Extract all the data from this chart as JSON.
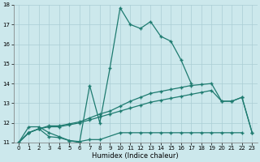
{
  "xlabel": "Humidex (Indice chaleur)",
  "bg_color": "#cce8ec",
  "line_color": "#1e7b70",
  "grid_color": "#aacdd4",
  "xlim": [
    -0.5,
    23.5
  ],
  "ylim": [
    11,
    18
  ],
  "xticks": [
    0,
    1,
    2,
    3,
    4,
    5,
    6,
    7,
    8,
    9,
    10,
    11,
    12,
    13,
    14,
    15,
    16,
    17,
    18,
    19,
    20,
    21,
    22,
    23
  ],
  "yticks": [
    11,
    12,
    13,
    14,
    15,
    16,
    17,
    18
  ],
  "s1x": [
    0,
    1,
    2,
    3,
    4,
    5,
    6,
    7,
    8,
    9,
    10,
    11,
    12,
    13,
    14,
    15,
    16,
    17
  ],
  "s1y": [
    11.0,
    11.8,
    11.8,
    11.5,
    11.3,
    11.1,
    11.0,
    13.9,
    12.0,
    14.8,
    17.85,
    17.0,
    16.8,
    17.15,
    16.4,
    16.15,
    15.2,
    14.0
  ],
  "s2x": [
    0,
    1,
    2,
    3,
    4,
    5,
    6,
    7,
    8,
    10,
    11,
    12,
    13,
    14,
    15,
    16,
    17,
    18,
    19,
    20,
    21,
    22
  ],
  "s2y": [
    11.0,
    11.5,
    11.7,
    11.3,
    11.25,
    11.1,
    11.05,
    11.15,
    11.15,
    11.5,
    11.5,
    11.5,
    11.5,
    11.5,
    11.5,
    11.5,
    11.5,
    11.5,
    11.5,
    11.5,
    11.5,
    11.5
  ],
  "s3x": [
    0,
    1,
    2,
    3,
    4,
    5,
    6,
    7,
    8,
    9,
    10,
    11,
    12,
    13,
    14,
    15,
    16,
    17,
    18,
    19,
    20,
    21,
    22,
    23
  ],
  "s3y": [
    11.0,
    11.5,
    11.7,
    11.8,
    11.8,
    11.9,
    12.0,
    12.15,
    12.3,
    12.45,
    12.6,
    12.75,
    12.9,
    13.05,
    13.15,
    13.25,
    13.35,
    13.45,
    13.55,
    13.65,
    13.1,
    13.1,
    13.3,
    11.5
  ],
  "s4x": [
    0,
    1,
    2,
    3,
    4,
    5,
    6,
    7,
    8,
    9,
    10,
    11,
    12,
    13,
    14,
    15,
    16,
    17,
    18,
    19,
    20,
    21,
    22,
    23
  ],
  "s4y": [
    11.0,
    11.5,
    11.7,
    11.85,
    11.85,
    11.95,
    12.05,
    12.25,
    12.45,
    12.6,
    12.85,
    13.1,
    13.3,
    13.5,
    13.6,
    13.7,
    13.8,
    13.9,
    13.95,
    14.0,
    13.1,
    13.1,
    13.3,
    11.5
  ]
}
